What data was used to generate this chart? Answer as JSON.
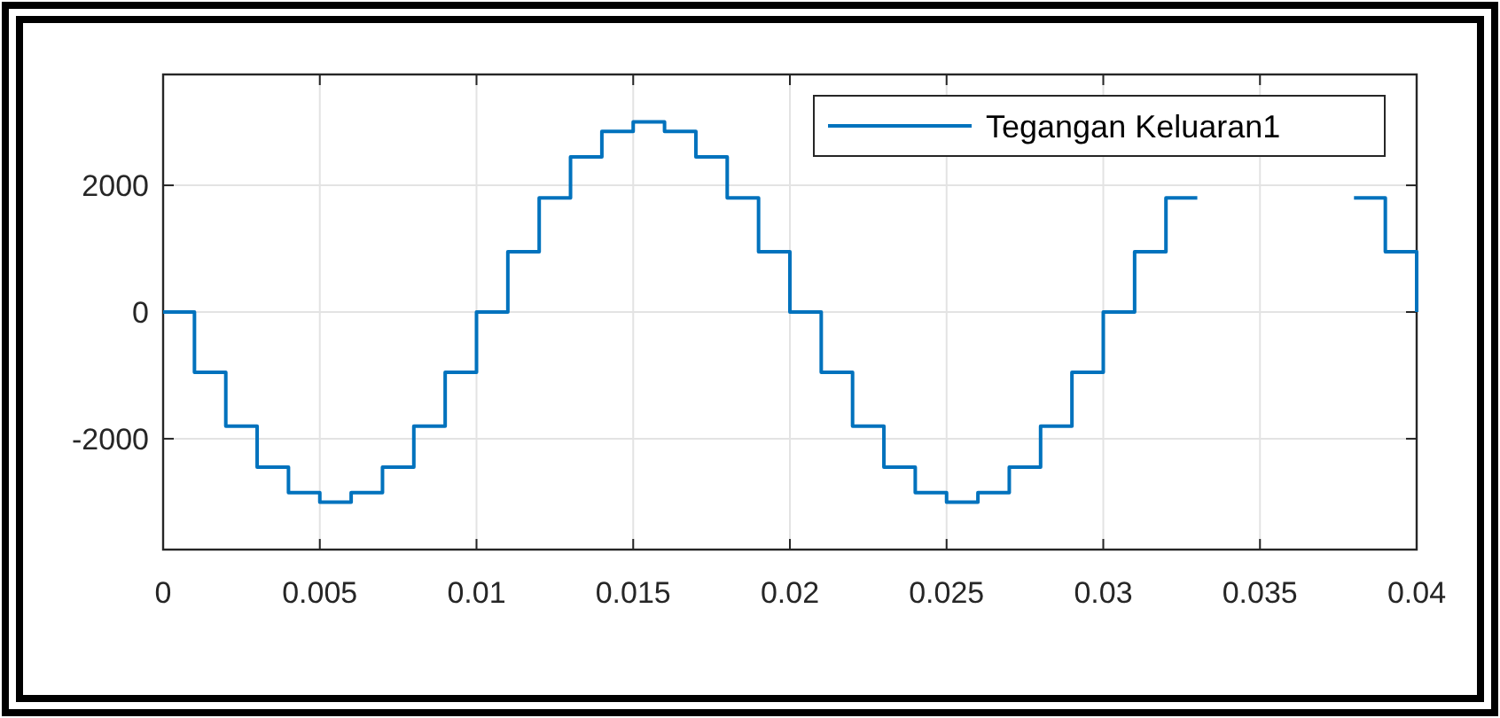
{
  "chart_data": {
    "type": "step",
    "x": [
      0,
      0.001,
      0.002,
      0.003,
      0.004,
      0.005,
      0.006,
      0.007,
      0.008,
      0.009,
      0.01,
      0.011,
      0.012,
      0.013,
      0.014,
      0.015,
      0.016,
      0.017,
      0.018,
      0.019,
      0.02,
      0.021,
      0.022,
      0.023,
      0.024,
      0.025,
      0.026,
      0.027,
      0.028,
      0.029,
      0.03,
      0.031,
      0.032,
      0.033,
      0.038,
      0.039,
      0.04
    ],
    "series": [
      {
        "name": "Tegangan Keluaran1",
        "color": "#0072bd",
        "values": [
          0,
          -950,
          -1800,
          -2450,
          -2850,
          -3000,
          -2850,
          -2450,
          -1800,
          -950,
          0,
          950,
          1800,
          2450,
          2850,
          3000,
          2850,
          2450,
          1800,
          950,
          0,
          -950,
          -1800,
          -2450,
          -2850,
          -3000,
          -2850,
          -2450,
          -1800,
          -950,
          0,
          950,
          1800,
          null,
          1800,
          950,
          0
        ]
      }
    ],
    "xlim": [
      0,
      0.04
    ],
    "xticks": [
      0,
      0.005,
      0.01,
      0.015,
      0.02,
      0.025,
      0.03,
      0.035,
      0.04
    ],
    "ylim": [
      -3750,
      3750
    ],
    "yticks": [
      -2000,
      0,
      2000
    ],
    "grid": true,
    "legend": "top right",
    "marker": "none",
    "line_style": "solid"
  }
}
